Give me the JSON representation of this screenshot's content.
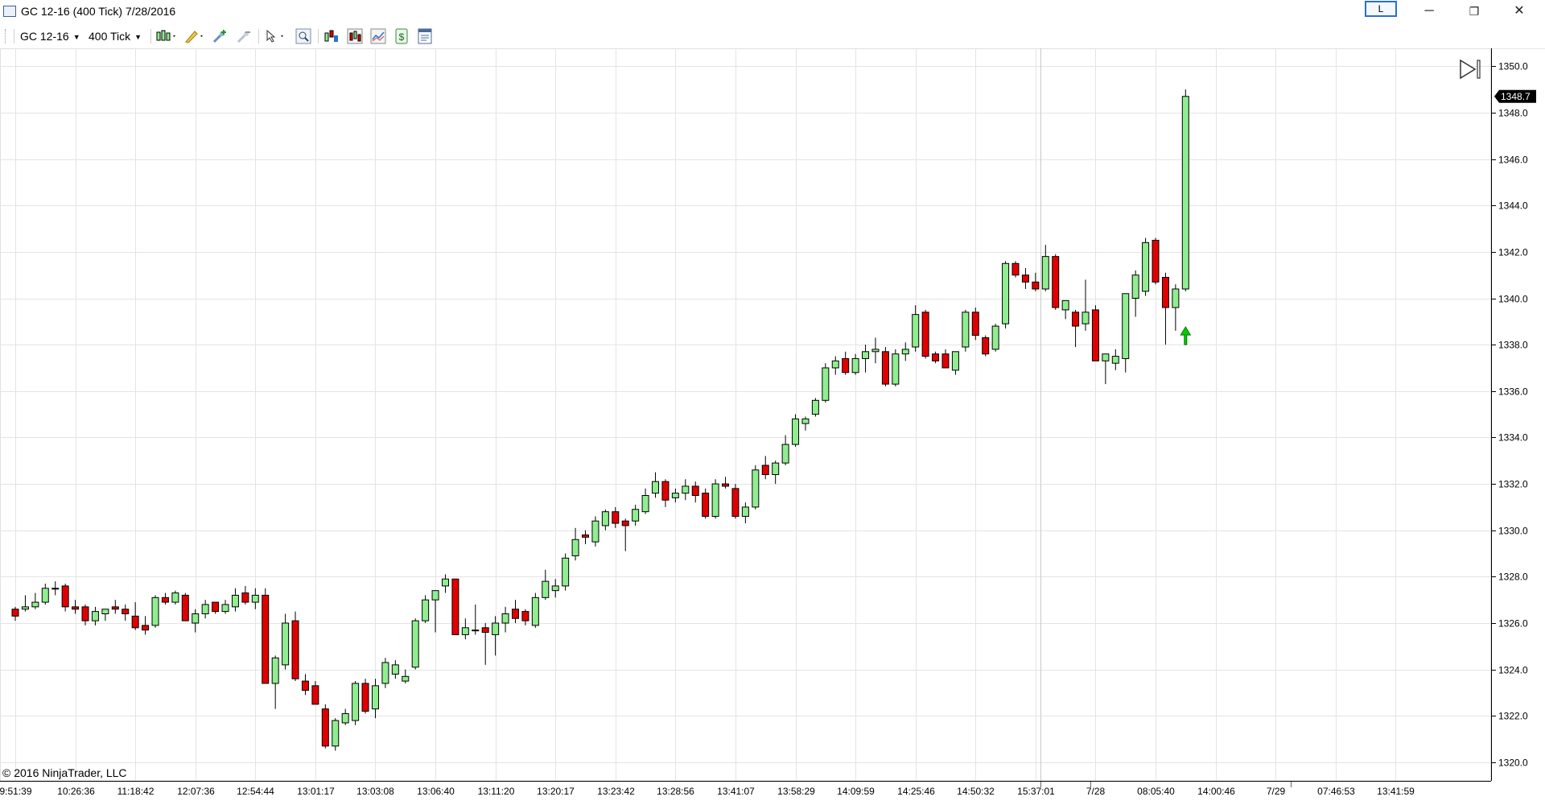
{
  "window": {
    "title": "GC 12-16 (400 Tick)  7/28/2016",
    "link_button": "L",
    "minimize_glyph": "─",
    "restore_glyph": "❐",
    "close_glyph": "✕"
  },
  "toolbar": {
    "instrument": "GC 12-16",
    "interval": "400 Tick",
    "icons": [
      "chart-style-icon",
      "drawing-tool-icon",
      "add-indicator-icon",
      "remove-indicator-icon",
      "pointer-icon",
      "zoom-icon",
      "data-series-icon",
      "strategies-icon",
      "indicators-icon",
      "chart-trader-icon",
      "properties-icon"
    ]
  },
  "colors": {
    "up_fill": "#90EE90",
    "down_fill": "#E00000",
    "grid": "#E4E4E4",
    "last_price_bg": "#000000",
    "signal_arrow": "#00CC00"
  },
  "copyright": "© 2016 NinjaTrader, LLC",
  "price_marker": "1348.7",
  "chart_data": {
    "type": "candlestick",
    "ylim": [
      1319.2,
      1350.6
    ],
    "yticks": [
      1350,
      1348,
      1346,
      1344,
      1342,
      1340,
      1338,
      1336,
      1334,
      1332,
      1330,
      1328,
      1326,
      1324,
      1322,
      1320
    ],
    "y_tick_labels": [
      "1350.0",
      "1348.0",
      "1346.0",
      "1344.0",
      "1342.0",
      "1340.0",
      "1338.0",
      "1336.0",
      "1334.0",
      "1332.0",
      "1330.0",
      "1328.0",
      "1326.0",
      "1324.0",
      "1322.0",
      "1320.0"
    ],
    "x_labels": [
      "9:51:39",
      "10:26:36",
      "11:18:42",
      "12:07:36",
      "12:54:44",
      "13:01:17",
      "13:03:08",
      "13:06:40",
      "13:11:20",
      "13:20:17",
      "13:23:42",
      "13:28:56",
      "13:41:07",
      "13:58:29",
      "14:09:59",
      "14:25:46",
      "14:50:32",
      "15:37:01",
      "7/28",
      "08:05:40",
      "14:00:46",
      "7/29",
      "07:46:53",
      "13:41:59"
    ],
    "x_label_bar_index": [
      0,
      6,
      12,
      18,
      24,
      30,
      36,
      42,
      48,
      54,
      60,
      66,
      72,
      78,
      84,
      90,
      96,
      102,
      108,
      114,
      120,
      126,
      132,
      138
    ],
    "session_break_bar_index": [
      102.5,
      107.5,
      127.5
    ],
    "last_price": 1348.7,
    "ohlc": [
      [
        1326.6,
        1326.7,
        1326.1,
        1326.3
      ],
      [
        1326.6,
        1327.2,
        1326.5,
        1326.7
      ],
      [
        1326.7,
        1327.3,
        1326.6,
        1326.9
      ],
      [
        1326.9,
        1327.7,
        1326.8,
        1327.5
      ],
      [
        1327.5,
        1327.8,
        1327.2,
        1327.5
      ],
      [
        1327.6,
        1327.7,
        1326.5,
        1326.7
      ],
      [
        1326.7,
        1327.0,
        1326.4,
        1326.6
      ],
      [
        1326.7,
        1326.8,
        1325.9,
        1326.1
      ],
      [
        1326.1,
        1326.7,
        1325.9,
        1326.5
      ],
      [
        1326.4,
        1326.6,
        1326.1,
        1326.6
      ],
      [
        1326.7,
        1327.0,
        1326.4,
        1326.6
      ],
      [
        1326.6,
        1326.8,
        1326.1,
        1326.4
      ],
      [
        1326.3,
        1326.9,
        1325.7,
        1325.8
      ],
      [
        1325.9,
        1326.3,
        1325.5,
        1325.7
      ],
      [
        1325.9,
        1327.2,
        1325.8,
        1327.1
      ],
      [
        1327.1,
        1327.3,
        1326.8,
        1326.9
      ],
      [
        1326.9,
        1327.4,
        1326.8,
        1327.3
      ],
      [
        1327.2,
        1327.3,
        1326.2,
        1326.1
      ],
      [
        1326.0,
        1326.6,
        1325.6,
        1326.4
      ],
      [
        1326.4,
        1327.0,
        1326.2,
        1326.8
      ],
      [
        1326.9,
        1326.9,
        1326.4,
        1326.5
      ],
      [
        1326.5,
        1327.0,
        1326.4,
        1326.8
      ],
      [
        1326.7,
        1327.5,
        1326.5,
        1327.2
      ],
      [
        1327.3,
        1327.6,
        1326.8,
        1326.9
      ],
      [
        1326.9,
        1327.5,
        1326.6,
        1327.2
      ],
      [
        1327.2,
        1327.5,
        1323.4,
        1323.4
      ],
      [
        1323.4,
        1324.6,
        1322.3,
        1324.5
      ],
      [
        1324.2,
        1326.4,
        1324.0,
        1326.0
      ],
      [
        1326.1,
        1326.5,
        1323.5,
        1323.6
      ],
      [
        1323.5,
        1323.8,
        1322.9,
        1323.1
      ],
      [
        1323.3,
        1323.5,
        1322.5,
        1322.5
      ],
      [
        1322.3,
        1322.5,
        1320.6,
        1320.7
      ],
      [
        1320.7,
        1321.9,
        1320.5,
        1321.8
      ],
      [
        1321.7,
        1322.3,
        1321.6,
        1322.1
      ],
      [
        1321.8,
        1323.5,
        1321.6,
        1323.4
      ],
      [
        1323.4,
        1323.6,
        1322.1,
        1322.2
      ],
      [
        1322.3,
        1323.6,
        1321.9,
        1323.3
      ],
      [
        1323.4,
        1324.5,
        1323.2,
        1324.3
      ],
      [
        1323.8,
        1324.4,
        1323.6,
        1324.2
      ],
      [
        1323.5,
        1324.0,
        1323.4,
        1323.7
      ],
      [
        1324.1,
        1326.2,
        1324.0,
        1326.1
      ],
      [
        1326.1,
        1327.2,
        1326.0,
        1327.0
      ],
      [
        1327.0,
        1327.4,
        1325.6,
        1327.4
      ],
      [
        1327.6,
        1328.1,
        1327.3,
        1327.9
      ],
      [
        1327.9,
        1327.9,
        1325.5,
        1325.5
      ],
      [
        1325.5,
        1326.2,
        1325.3,
        1325.8
      ],
      [
        1325.7,
        1326.8,
        1325.5,
        1325.7
      ],
      [
        1325.8,
        1326.0,
        1324.2,
        1325.6
      ],
      [
        1325.5,
        1326.3,
        1324.6,
        1326.0
      ],
      [
        1326.0,
        1326.7,
        1325.6,
        1326.4
      ],
      [
        1326.6,
        1327.0,
        1326.0,
        1326.2
      ],
      [
        1326.5,
        1326.6,
        1325.9,
        1326.1
      ],
      [
        1325.9,
        1327.3,
        1325.8,
        1327.1
      ],
      [
        1327.1,
        1328.3,
        1327.0,
        1327.8
      ],
      [
        1327.4,
        1327.9,
        1327.1,
        1327.6
      ],
      [
        1327.6,
        1329.0,
        1327.4,
        1328.8
      ],
      [
        1328.9,
        1330.1,
        1328.7,
        1329.6
      ],
      [
        1329.8,
        1330.0,
        1329.4,
        1329.7
      ],
      [
        1329.5,
        1330.6,
        1329.3,
        1330.4
      ],
      [
        1330.2,
        1330.9,
        1330.0,
        1330.8
      ],
      [
        1330.8,
        1331.0,
        1330.1,
        1330.3
      ],
      [
        1330.4,
        1330.5,
        1329.1,
        1330.2
      ],
      [
        1330.4,
        1331.1,
        1330.2,
        1330.9
      ],
      [
        1330.8,
        1331.8,
        1330.7,
        1331.5
      ],
      [
        1331.6,
        1332.5,
        1331.4,
        1332.1
      ],
      [
        1332.1,
        1332.2,
        1331.0,
        1331.3
      ],
      [
        1331.4,
        1331.8,
        1331.2,
        1331.6
      ],
      [
        1331.6,
        1332.2,
        1331.3,
        1331.9
      ],
      [
        1331.9,
        1332.1,
        1331.2,
        1331.5
      ],
      [
        1331.6,
        1331.8,
        1330.5,
        1330.6
      ],
      [
        1330.6,
        1332.2,
        1330.5,
        1332.0
      ],
      [
        1332.0,
        1332.3,
        1331.8,
        1331.9
      ],
      [
        1331.8,
        1332.0,
        1330.5,
        1330.6
      ],
      [
        1330.6,
        1331.2,
        1330.3,
        1331.0
      ],
      [
        1331.0,
        1332.8,
        1330.9,
        1332.6
      ],
      [
        1332.8,
        1333.2,
        1332.2,
        1332.4
      ],
      [
        1332.4,
        1333.0,
        1332.0,
        1332.9
      ],
      [
        1332.9,
        1334.1,
        1332.8,
        1333.7
      ],
      [
        1333.7,
        1335.0,
        1333.6,
        1334.8
      ],
      [
        1334.6,
        1334.9,
        1334.3,
        1334.8
      ],
      [
        1335.0,
        1335.7,
        1334.9,
        1335.6
      ],
      [
        1335.6,
        1337.2,
        1335.5,
        1337.0
      ],
      [
        1337.0,
        1337.5,
        1336.7,
        1337.3
      ],
      [
        1337.4,
        1337.7,
        1336.7,
        1336.8
      ],
      [
        1336.8,
        1337.6,
        1336.7,
        1337.4
      ],
      [
        1337.4,
        1338.0,
        1336.8,
        1337.7
      ],
      [
        1337.7,
        1338.3,
        1337.2,
        1337.8
      ],
      [
        1337.7,
        1337.9,
        1336.2,
        1336.3
      ],
      [
        1336.3,
        1337.8,
        1336.2,
        1337.6
      ],
      [
        1337.6,
        1338.1,
        1337.3,
        1337.8
      ],
      [
        1337.9,
        1339.7,
        1337.7,
        1339.3
      ],
      [
        1339.4,
        1339.5,
        1337.4,
        1337.5
      ],
      [
        1337.6,
        1337.7,
        1337.2,
        1337.3
      ],
      [
        1337.6,
        1337.8,
        1337.1,
        1337.0
      ],
      [
        1336.9,
        1337.7,
        1336.7,
        1337.7
      ],
      [
        1337.9,
        1339.5,
        1337.7,
        1339.4
      ],
      [
        1339.4,
        1339.6,
        1338.2,
        1338.4
      ],
      [
        1338.3,
        1338.4,
        1337.5,
        1337.6
      ],
      [
        1337.8,
        1338.9,
        1337.7,
        1338.8
      ],
      [
        1338.9,
        1341.6,
        1338.7,
        1341.5
      ],
      [
        1341.5,
        1341.6,
        1340.9,
        1341.0
      ],
      [
        1341.0,
        1341.3,
        1340.4,
        1340.7
      ],
      [
        1340.7,
        1341.1,
        1340.3,
        1340.4
      ],
      [
        1340.4,
        1342.3,
        1340.3,
        1341.8
      ],
      [
        1341.8,
        1341.9,
        1339.5,
        1339.6
      ],
      [
        1339.5,
        1339.8,
        1339.1,
        1339.9
      ],
      [
        1339.4,
        1339.5,
        1337.9,
        1338.8
      ],
      [
        1338.9,
        1340.8,
        1338.6,
        1339.4
      ],
      [
        1339.5,
        1339.7,
        1337.3,
        1337.3
      ],
      [
        1337.3,
        1337.6,
        1336.3,
        1337.6
      ],
      [
        1337.2,
        1337.8,
        1336.9,
        1337.5
      ],
      [
        1337.4,
        1340.2,
        1336.8,
        1340.2
      ],
      [
        1340.0,
        1341.2,
        1339.2,
        1341.0
      ],
      [
        1340.3,
        1342.6,
        1340.1,
        1342.4
      ],
      [
        1342.5,
        1342.6,
        1340.6,
        1340.7
      ],
      [
        1340.9,
        1341.1,
        1338.0,
        1339.6
      ],
      [
        1339.6,
        1340.6,
        1338.6,
        1340.4
      ],
      [
        1340.4,
        1349.0,
        1340.3,
        1348.7
      ]
    ]
  }
}
